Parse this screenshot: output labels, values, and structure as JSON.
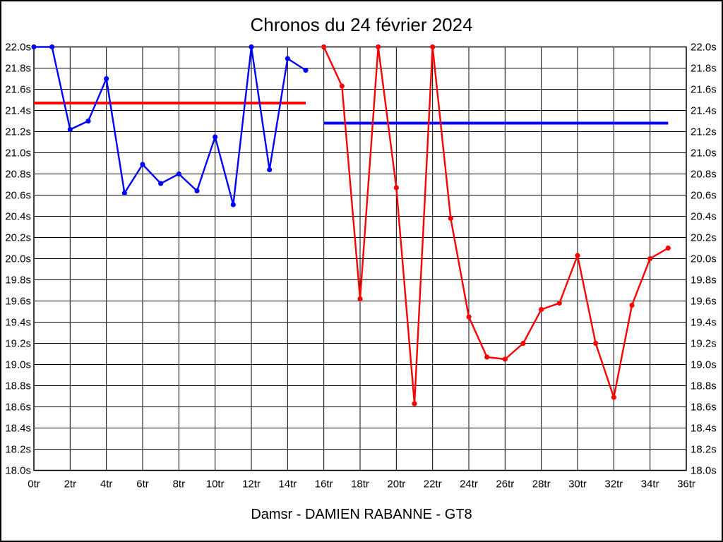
{
  "title": "Chronos du 24 février 2024",
  "footer": "Damsr - DAMIEN RABANNE - GT8",
  "colors": {
    "blue_series": "#0000ff",
    "red_series": "#ff0000",
    "grid": "#000000",
    "text": "#000000",
    "background": "#ffffff"
  },
  "chart_data": {
    "type": "line",
    "title": "Chronos du 24 février 2024",
    "subtitle": "Damsr - DAMIEN RABANNE - GT8",
    "xlabel": "",
    "ylabel": "",
    "x_unit": "tr",
    "y_unit": "s",
    "xlim": [
      0,
      36
    ],
    "ylim": [
      18.0,
      22.0
    ],
    "x_tick_step": 2,
    "y_tick_step": 0.2,
    "grid": true,
    "y_axis_both_sides": true,
    "legend": "none",
    "x_tick_labels": [
      "0tr",
      "2tr",
      "4tr",
      "6tr",
      "8tr",
      "10tr",
      "12tr",
      "14tr",
      "16tr",
      "18tr",
      "20tr",
      "22tr",
      "24tr",
      "26tr",
      "28tr",
      "30tr",
      "32tr",
      "34tr",
      "36tr"
    ],
    "y_tick_labels": [
      "22.0s",
      "21.8s",
      "21.6s",
      "21.4s",
      "21.2s",
      "21.0s",
      "20.8s",
      "20.6s",
      "20.4s",
      "20.2s",
      "20.0s",
      "19.8s",
      "19.6s",
      "19.4s",
      "19.2s",
      "19.0s",
      "18.8s",
      "18.6s",
      "18.4s",
      "18.2s",
      "18.0s"
    ],
    "series": [
      {
        "name": "blue-laps",
        "color": "#0000ff",
        "marker": "circle",
        "points": [
          [
            0,
            22.0
          ],
          [
            1,
            22.0
          ],
          [
            2,
            21.22
          ],
          [
            3,
            21.3
          ],
          [
            4,
            21.7
          ],
          [
            5,
            20.62
          ],
          [
            6,
            20.89
          ],
          [
            7,
            20.71
          ],
          [
            8,
            20.8
          ],
          [
            9,
            20.64
          ],
          [
            10,
            21.15
          ],
          [
            11,
            20.51
          ],
          [
            12,
            22.0
          ],
          [
            13,
            20.84
          ],
          [
            14,
            21.89
          ],
          [
            15,
            21.78
          ]
        ]
      },
      {
        "name": "red-laps",
        "color": "#ff0000",
        "marker": "circle",
        "points": [
          [
            16,
            22.0
          ],
          [
            17,
            21.63
          ],
          [
            18,
            19.62
          ],
          [
            19,
            22.0
          ],
          [
            20,
            20.67
          ],
          [
            21,
            18.63
          ],
          [
            22,
            22.0
          ],
          [
            23,
            20.38
          ],
          [
            24,
            19.45
          ],
          [
            25,
            19.07
          ],
          [
            26,
            19.05
          ],
          [
            27,
            19.2
          ],
          [
            28,
            19.52
          ],
          [
            29,
            19.58
          ],
          [
            30,
            20.03
          ],
          [
            31,
            19.2
          ],
          [
            32,
            18.69
          ],
          [
            33,
            19.56
          ],
          [
            34,
            20.0
          ],
          [
            35,
            20.1
          ]
        ]
      }
    ],
    "reference_lines": [
      {
        "name": "red-average-line",
        "color": "#ff0000",
        "value": 21.47,
        "x_start": 0,
        "x_end": 15
      },
      {
        "name": "blue-average-line",
        "color": "#0000ff",
        "value": 21.28,
        "x_start": 16,
        "x_end": 35
      }
    ]
  }
}
